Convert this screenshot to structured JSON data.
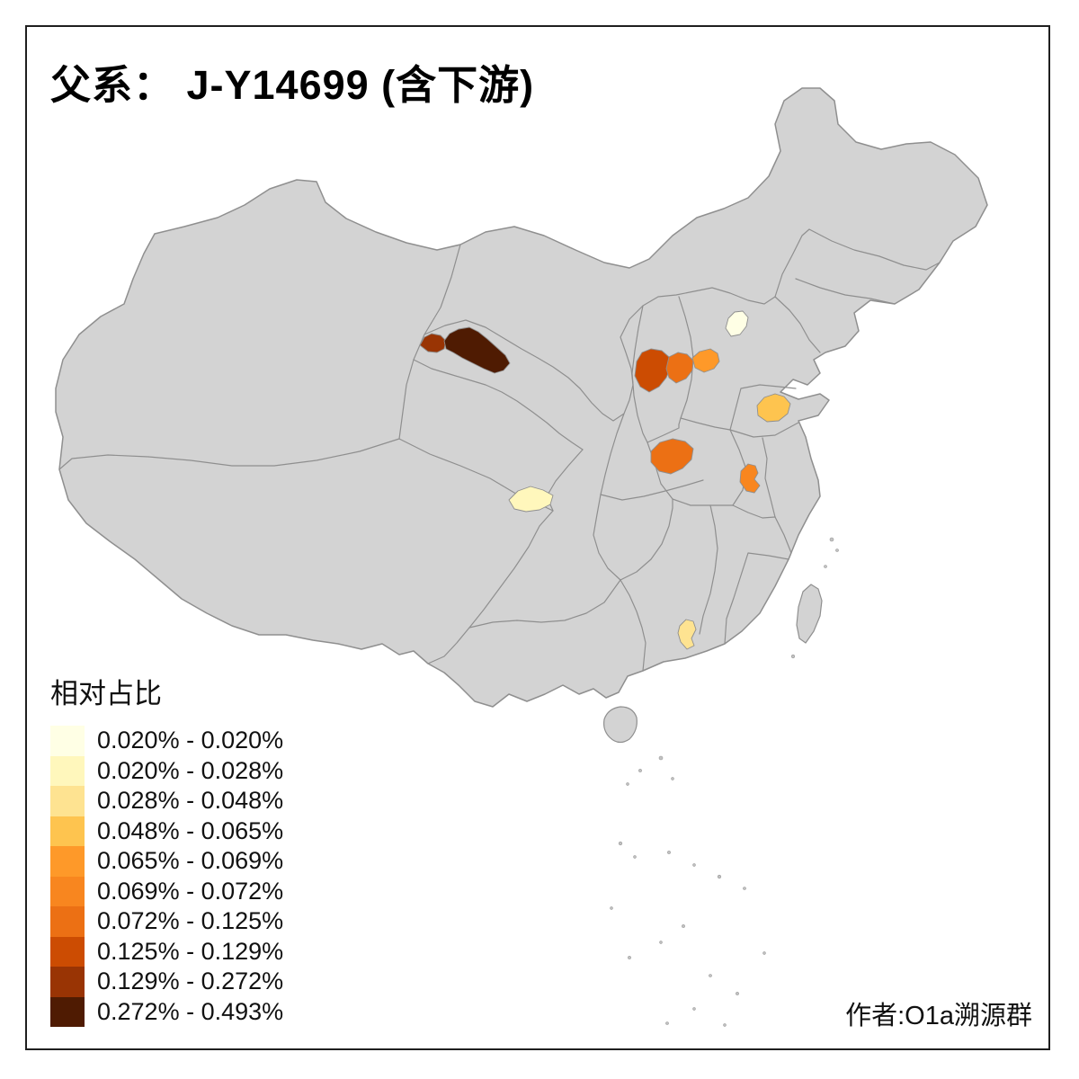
{
  "title": "父系： J-Y14699 (含下游)",
  "credit": "作者:O1a溯源群",
  "legend": {
    "title": "相对占比",
    "classes": [
      {
        "label": "0.020% - 0.020%",
        "color": "#FFFFE5"
      },
      {
        "label": "0.020% - 0.028%",
        "color": "#FFF7BC"
      },
      {
        "label": "0.028% - 0.048%",
        "color": "#FEE391"
      },
      {
        "label": "0.048% - 0.065%",
        "color": "#FEC44F"
      },
      {
        "label": "0.065% - 0.069%",
        "color": "#FE9929"
      },
      {
        "label": "0.069% - 0.072%",
        "color": "#F8861F"
      },
      {
        "label": "0.072% - 0.125%",
        "color": "#EC7014"
      },
      {
        "label": "0.125% - 0.129%",
        "color": "#CC4C02"
      },
      {
        "label": "0.129% - 0.272%",
        "color": "#993404"
      },
      {
        "label": "0.272% - 0.493%",
        "color": "#4F1B02"
      }
    ]
  },
  "map": {
    "base_fill": "#D3D3D3",
    "border_color": "#8F8F8F",
    "background": "#FFFFFF",
    "regions": [
      {
        "id": "gansu-hexi-west",
        "class_index": 8
      },
      {
        "id": "gansu-hexi-main",
        "class_index": 9
      },
      {
        "id": "shanxi-west",
        "class_index": 7
      },
      {
        "id": "shanxi-east",
        "class_index": 6
      },
      {
        "id": "hebei-central",
        "class_index": 4
      },
      {
        "id": "beijing",
        "class_index": 0
      },
      {
        "id": "shandong-central",
        "class_index": 3
      },
      {
        "id": "shaanxi-guanzhong",
        "class_index": 6
      },
      {
        "id": "anhui-central",
        "class_index": 5
      },
      {
        "id": "sichuan-chengdu",
        "class_index": 1
      },
      {
        "id": "guangdong-pearl",
        "class_index": 2
      }
    ]
  }
}
